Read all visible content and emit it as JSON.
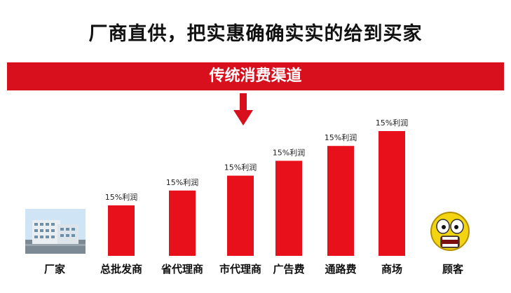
{
  "headline": "厂商直供，把实惠确确实实的给到买家",
  "banner": {
    "text": "传统消费渠道",
    "color": "#d8101d"
  },
  "colors": {
    "bar": "#e8111b",
    "text": "#111111"
  },
  "icons": {
    "factory": "factory-building-icon",
    "customer": "shocked-face-icon"
  },
  "chart_data": {
    "type": "bar",
    "categories": [
      "总批发商",
      "省代理商",
      "市代理商",
      "广告费",
      "通路费",
      "商场"
    ],
    "values": [
      1,
      2,
      3,
      4,
      5,
      6
    ],
    "data_labels": [
      "15%利润",
      "15%利润",
      "15%利润",
      "15%利润",
      "15%利润",
      "15%利润"
    ]
  },
  "endpoints": {
    "left_label": "厂家",
    "right_label": "顾客"
  }
}
